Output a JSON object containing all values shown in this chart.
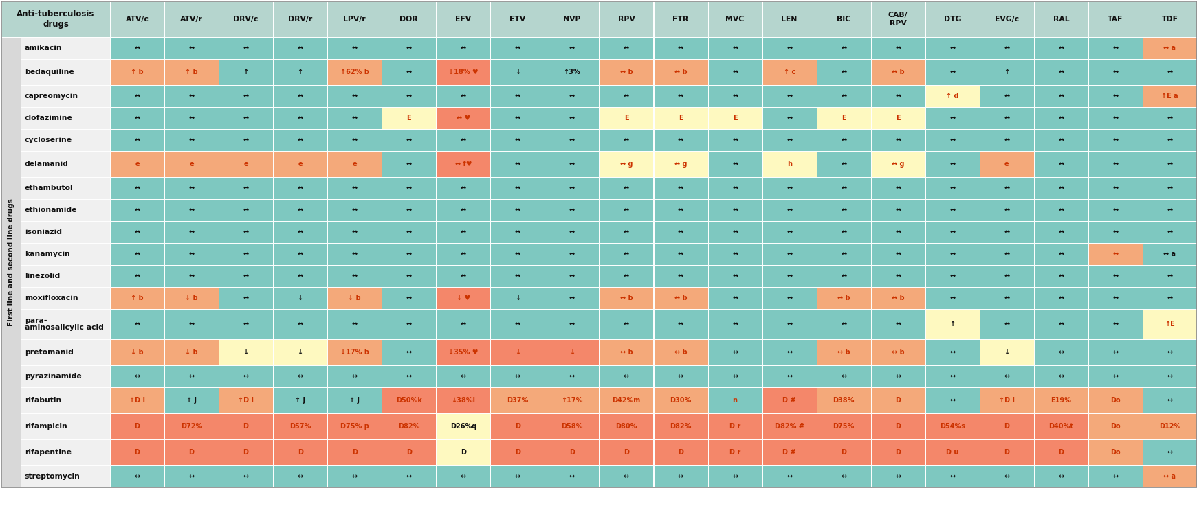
{
  "col_headers": [
    "ATV/c",
    "ATV/r",
    "DRV/c",
    "DRV/r",
    "LPV/r",
    "DOR",
    "EFV",
    "ETV",
    "NVP",
    "RPV",
    "FTR",
    "MVC",
    "LEN",
    "BIC",
    "CAB/\nRPV",
    "DTG",
    "EVG/c",
    "RAL",
    "TAF",
    "TDF"
  ],
  "row_labels": [
    "amikacin",
    "bedaquiline",
    "capreomycin",
    "clofazimine",
    "cycloserine",
    "delamanid",
    "ethambutol",
    "ethionamide",
    "isoniazid",
    "kanamycin",
    "linezolid",
    "moxifloxacin",
    "para-\naminosalicylic acid",
    "pretomanid",
    "pyrazinamide",
    "rifabutin",
    "rifampicin",
    "rifapentine",
    "streptomycin"
  ],
  "side_label": "First line and second line drugs",
  "cells": [
    [
      "↔",
      "↔",
      "↔",
      "↔",
      "↔",
      "↔",
      "↔",
      "↔",
      "↔",
      "↔",
      "↔",
      "↔",
      "↔",
      "↔",
      "↔",
      "↔",
      "↔",
      "↔",
      "↔",
      "↔ a"
    ],
    [
      "↑ b",
      "↑ b",
      "↑",
      "↑",
      "↑62% b",
      "↔",
      "↓18% ♥",
      "↓",
      "↑3%",
      "↔ b",
      "↔ b",
      "↔",
      "↑ c",
      "↔",
      "↔ b",
      "↔",
      "↑",
      "↔",
      "↔",
      "↔"
    ],
    [
      "↔",
      "↔",
      "↔",
      "↔",
      "↔",
      "↔",
      "↔",
      "↔",
      "↔",
      "↔",
      "↔",
      "↔",
      "↔",
      "↔",
      "↔",
      "↑ d",
      "↔",
      "↔",
      "↔",
      "↑E a"
    ],
    [
      "↔",
      "↔",
      "↔",
      "↔",
      "↔",
      "E",
      "↔ ♥",
      "↔",
      "↔",
      "E",
      "E",
      "E",
      "↔",
      "E",
      "E",
      "↔",
      "↔",
      "↔",
      "↔",
      "↔"
    ],
    [
      "↔",
      "↔",
      "↔",
      "↔",
      "↔",
      "↔",
      "↔",
      "↔",
      "↔",
      "↔",
      "↔",
      "↔",
      "↔",
      "↔",
      "↔",
      "↔",
      "↔",
      "↔",
      "↔",
      "↔"
    ],
    [
      "e",
      "e",
      "e",
      "e",
      "e",
      "↔",
      "↔ f♥",
      "↔",
      "↔",
      "↔ g",
      "↔ g",
      "↔",
      "h",
      "↔",
      "↔ g",
      "↔",
      "e",
      "↔",
      "↔",
      "↔"
    ],
    [
      "↔",
      "↔",
      "↔",
      "↔",
      "↔",
      "↔",
      "↔",
      "↔",
      "↔",
      "↔",
      "↔",
      "↔",
      "↔",
      "↔",
      "↔",
      "↔",
      "↔",
      "↔",
      "↔",
      "↔"
    ],
    [
      "↔",
      "↔",
      "↔",
      "↔",
      "↔",
      "↔",
      "↔",
      "↔",
      "↔",
      "↔",
      "↔",
      "↔",
      "↔",
      "↔",
      "↔",
      "↔",
      "↔",
      "↔",
      "↔",
      "↔"
    ],
    [
      "↔",
      "↔",
      "↔",
      "↔",
      "↔",
      "↔",
      "↔",
      "↔",
      "↔",
      "↔",
      "↔",
      "↔",
      "↔",
      "↔",
      "↔",
      "↔",
      "↔",
      "↔",
      "↔",
      "↔"
    ],
    [
      "↔",
      "↔",
      "↔",
      "↔",
      "↔",
      "↔",
      "↔",
      "↔",
      "↔",
      "↔",
      "↔",
      "↔",
      "↔",
      "↔",
      "↔",
      "↔",
      "↔",
      "↔",
      "↔",
      "↔ a"
    ],
    [
      "↔",
      "↔",
      "↔",
      "↔",
      "↔",
      "↔",
      "↔",
      "↔",
      "↔",
      "↔",
      "↔",
      "↔",
      "↔",
      "↔",
      "↔",
      "↔",
      "↔",
      "↔",
      "↔",
      "↔"
    ],
    [
      "↑ b",
      "↓ b",
      "↔",
      "↓",
      "↓ b",
      "↔",
      "↓ ♥",
      "↓",
      "↔",
      "↔ b",
      "↔ b",
      "↔",
      "↔",
      "↔ b",
      "↔ b",
      "↔",
      "↔",
      "↔",
      "↔",
      "↔"
    ],
    [
      "↔",
      "↔",
      "↔",
      "↔",
      "↔",
      "↔",
      "↔",
      "↔",
      "↔",
      "↔",
      "↔",
      "↔",
      "↔",
      "↔",
      "↔",
      "↑",
      "↔",
      "↔",
      "↔",
      "↑E"
    ],
    [
      "↓ b",
      "↓ b",
      "↓",
      "↓",
      "↓17% b",
      "↔",
      "↓35% ♥",
      "↓",
      "↓",
      "↔ b",
      "↔ b",
      "↔",
      "↔",
      "↔ b",
      "↔ b",
      "↔",
      "↓",
      "↔",
      "↔",
      "↔"
    ],
    [
      "↔",
      "↔",
      "↔",
      "↔",
      "↔",
      "↔",
      "↔",
      "↔",
      "↔",
      "↔",
      "↔",
      "↔",
      "↔",
      "↔",
      "↔",
      "↔",
      "↔",
      "↔",
      "↔",
      "↔"
    ],
    [
      "↑D i",
      "↑ j",
      "↑D i",
      "↑ j",
      "↑ j",
      "D50%k",
      "↓38%l",
      "D37%",
      "↑17%",
      "D42%m",
      "D30%",
      "n",
      "D #",
      "D38%",
      "D",
      "↔",
      "↑D i",
      "E19%",
      "Do",
      "↔"
    ],
    [
      "D",
      "D72%",
      "D",
      "D57%",
      "D75% p",
      "D82%",
      "D26%q",
      "D",
      "D58%",
      "D80%",
      "D82%",
      "D r",
      "D82% #",
      "D75%",
      "D",
      "D54%s",
      "D",
      "D40%t",
      "Do",
      "D12%"
    ],
    [
      "D",
      "D",
      "D",
      "D",
      "D",
      "D",
      "D",
      "D",
      "D",
      "D",
      "D",
      "D r",
      "D #",
      "D",
      "D",
      "D u",
      "D",
      "D",
      "Do",
      "↔"
    ],
    [
      "↔",
      "↔",
      "↔",
      "↔",
      "↔",
      "↔",
      "↔",
      "↔",
      "↔",
      "↔",
      "↔",
      "↔",
      "↔",
      "↔",
      "↔",
      "↔",
      "↔",
      "↔",
      "↔",
      "↔ a"
    ]
  ],
  "cell_colors": [
    [
      "#7ec8c0",
      "#7ec8c0",
      "#7ec8c0",
      "#7ec8c0",
      "#7ec8c0",
      "#7ec8c0",
      "#7ec8c0",
      "#7ec8c0",
      "#7ec8c0",
      "#7ec8c0",
      "#7ec8c0",
      "#7ec8c0",
      "#7ec8c0",
      "#7ec8c0",
      "#7ec8c0",
      "#7ec8c0",
      "#7ec8c0",
      "#7ec8c0",
      "#7ec8c0",
      "#f4a97a"
    ],
    [
      "#f4a97a",
      "#f4a97a",
      "#7ec8c0",
      "#7ec8c0",
      "#f4a97a",
      "#7ec8c0",
      "#f4876a",
      "#7ec8c0",
      "#7ec8c0",
      "#f4a97a",
      "#f4a97a",
      "#7ec8c0",
      "#f4a97a",
      "#7ec8c0",
      "#f4a97a",
      "#7ec8c0",
      "#7ec8c0",
      "#7ec8c0",
      "#7ec8c0",
      "#7ec8c0"
    ],
    [
      "#7ec8c0",
      "#7ec8c0",
      "#7ec8c0",
      "#7ec8c0",
      "#7ec8c0",
      "#7ec8c0",
      "#7ec8c0",
      "#7ec8c0",
      "#7ec8c0",
      "#7ec8c0",
      "#7ec8c0",
      "#7ec8c0",
      "#7ec8c0",
      "#7ec8c0",
      "#7ec8c0",
      "#fef9c0",
      "#7ec8c0",
      "#7ec8c0",
      "#7ec8c0",
      "#f4a97a"
    ],
    [
      "#7ec8c0",
      "#7ec8c0",
      "#7ec8c0",
      "#7ec8c0",
      "#7ec8c0",
      "#fef9c0",
      "#f4876a",
      "#7ec8c0",
      "#7ec8c0",
      "#fef9c0",
      "#fef9c0",
      "#fef9c0",
      "#7ec8c0",
      "#fef9c0",
      "#fef9c0",
      "#7ec8c0",
      "#7ec8c0",
      "#7ec8c0",
      "#7ec8c0",
      "#7ec8c0"
    ],
    [
      "#7ec8c0",
      "#7ec8c0",
      "#7ec8c0",
      "#7ec8c0",
      "#7ec8c0",
      "#7ec8c0",
      "#7ec8c0",
      "#7ec8c0",
      "#7ec8c0",
      "#7ec8c0",
      "#7ec8c0",
      "#7ec8c0",
      "#7ec8c0",
      "#7ec8c0",
      "#7ec8c0",
      "#7ec8c0",
      "#7ec8c0",
      "#7ec8c0",
      "#7ec8c0",
      "#7ec8c0"
    ],
    [
      "#f4a97a",
      "#f4a97a",
      "#f4a97a",
      "#f4a97a",
      "#f4a97a",
      "#7ec8c0",
      "#f4876a",
      "#7ec8c0",
      "#7ec8c0",
      "#fef9c0",
      "#fef9c0",
      "#7ec8c0",
      "#fef9c0",
      "#7ec8c0",
      "#fef9c0",
      "#7ec8c0",
      "#f4a97a",
      "#7ec8c0",
      "#7ec8c0",
      "#7ec8c0"
    ],
    [
      "#7ec8c0",
      "#7ec8c0",
      "#7ec8c0",
      "#7ec8c0",
      "#7ec8c0",
      "#7ec8c0",
      "#7ec8c0",
      "#7ec8c0",
      "#7ec8c0",
      "#7ec8c0",
      "#7ec8c0",
      "#7ec8c0",
      "#7ec8c0",
      "#7ec8c0",
      "#7ec8c0",
      "#7ec8c0",
      "#7ec8c0",
      "#7ec8c0",
      "#7ec8c0",
      "#7ec8c0"
    ],
    [
      "#7ec8c0",
      "#7ec8c0",
      "#7ec8c0",
      "#7ec8c0",
      "#7ec8c0",
      "#7ec8c0",
      "#7ec8c0",
      "#7ec8c0",
      "#7ec8c0",
      "#7ec8c0",
      "#7ec8c0",
      "#7ec8c0",
      "#7ec8c0",
      "#7ec8c0",
      "#7ec8c0",
      "#7ec8c0",
      "#7ec8c0",
      "#7ec8c0",
      "#7ec8c0",
      "#7ec8c0"
    ],
    [
      "#7ec8c0",
      "#7ec8c0",
      "#7ec8c0",
      "#7ec8c0",
      "#7ec8c0",
      "#7ec8c0",
      "#7ec8c0",
      "#7ec8c0",
      "#7ec8c0",
      "#7ec8c0",
      "#7ec8c0",
      "#7ec8c0",
      "#7ec8c0",
      "#7ec8c0",
      "#7ec8c0",
      "#7ec8c0",
      "#7ec8c0",
      "#7ec8c0",
      "#7ec8c0",
      "#7ec8c0"
    ],
    [
      "#7ec8c0",
      "#7ec8c0",
      "#7ec8c0",
      "#7ec8c0",
      "#7ec8c0",
      "#7ec8c0",
      "#7ec8c0",
      "#7ec8c0",
      "#7ec8c0",
      "#7ec8c0",
      "#7ec8c0",
      "#7ec8c0",
      "#7ec8c0",
      "#7ec8c0",
      "#7ec8c0",
      "#7ec8c0",
      "#7ec8c0",
      "#7ec8c0",
      "#f4a97a",
      "#7ec8c0"
    ],
    [
      "#7ec8c0",
      "#7ec8c0",
      "#7ec8c0",
      "#7ec8c0",
      "#7ec8c0",
      "#7ec8c0",
      "#7ec8c0",
      "#7ec8c0",
      "#7ec8c0",
      "#7ec8c0",
      "#7ec8c0",
      "#7ec8c0",
      "#7ec8c0",
      "#7ec8c0",
      "#7ec8c0",
      "#7ec8c0",
      "#7ec8c0",
      "#7ec8c0",
      "#7ec8c0",
      "#7ec8c0"
    ],
    [
      "#f4a97a",
      "#f4a97a",
      "#7ec8c0",
      "#7ec8c0",
      "#f4a97a",
      "#7ec8c0",
      "#f4876a",
      "#7ec8c0",
      "#7ec8c0",
      "#f4a97a",
      "#f4a97a",
      "#7ec8c0",
      "#7ec8c0",
      "#f4a97a",
      "#f4a97a",
      "#7ec8c0",
      "#7ec8c0",
      "#7ec8c0",
      "#7ec8c0",
      "#7ec8c0"
    ],
    [
      "#7ec8c0",
      "#7ec8c0",
      "#7ec8c0",
      "#7ec8c0",
      "#7ec8c0",
      "#7ec8c0",
      "#7ec8c0",
      "#7ec8c0",
      "#7ec8c0",
      "#7ec8c0",
      "#7ec8c0",
      "#7ec8c0",
      "#7ec8c0",
      "#7ec8c0",
      "#7ec8c0",
      "#fef9c0",
      "#7ec8c0",
      "#7ec8c0",
      "#7ec8c0",
      "#fef9c0"
    ],
    [
      "#f4a97a",
      "#f4a97a",
      "#fef9c0",
      "#fef9c0",
      "#f4a97a",
      "#7ec8c0",
      "#f4876a",
      "#f4876a",
      "#f4876a",
      "#f4a97a",
      "#f4a97a",
      "#7ec8c0",
      "#7ec8c0",
      "#f4a97a",
      "#f4a97a",
      "#7ec8c0",
      "#fef9c0",
      "#7ec8c0",
      "#7ec8c0",
      "#7ec8c0"
    ],
    [
      "#7ec8c0",
      "#7ec8c0",
      "#7ec8c0",
      "#7ec8c0",
      "#7ec8c0",
      "#7ec8c0",
      "#7ec8c0",
      "#7ec8c0",
      "#7ec8c0",
      "#7ec8c0",
      "#7ec8c0",
      "#7ec8c0",
      "#7ec8c0",
      "#7ec8c0",
      "#7ec8c0",
      "#7ec8c0",
      "#7ec8c0",
      "#7ec8c0",
      "#7ec8c0",
      "#7ec8c0"
    ],
    [
      "#f4a97a",
      "#7ec8c0",
      "#f4a97a",
      "#7ec8c0",
      "#7ec8c0",
      "#f4876a",
      "#f4876a",
      "#f4a97a",
      "#f4a97a",
      "#f4a97a",
      "#f4a97a",
      "#7ec8c0",
      "#f4876a",
      "#f4a97a",
      "#f4a97a",
      "#7ec8c0",
      "#f4a97a",
      "#f4a97a",
      "#f4a97a",
      "#7ec8c0"
    ],
    [
      "#f4876a",
      "#f4876a",
      "#f4876a",
      "#f4876a",
      "#f4876a",
      "#f4876a",
      "#fef9c0",
      "#f4876a",
      "#f4876a",
      "#f4876a",
      "#f4876a",
      "#f4876a",
      "#f4876a",
      "#f4876a",
      "#f4876a",
      "#f4876a",
      "#f4876a",
      "#f4876a",
      "#f4a97a",
      "#f4a97a"
    ],
    [
      "#f4876a",
      "#f4876a",
      "#f4876a",
      "#f4876a",
      "#f4876a",
      "#f4876a",
      "#fef9c0",
      "#f4876a",
      "#f4876a",
      "#f4876a",
      "#f4876a",
      "#f4876a",
      "#f4876a",
      "#f4876a",
      "#f4876a",
      "#f4876a",
      "#f4876a",
      "#f4876a",
      "#f4a97a",
      "#7ec8c0"
    ],
    [
      "#7ec8c0",
      "#7ec8c0",
      "#7ec8c0",
      "#7ec8c0",
      "#7ec8c0",
      "#7ec8c0",
      "#7ec8c0",
      "#7ec8c0",
      "#7ec8c0",
      "#7ec8c0",
      "#7ec8c0",
      "#7ec8c0",
      "#7ec8c0",
      "#7ec8c0",
      "#7ec8c0",
      "#7ec8c0",
      "#7ec8c0",
      "#7ec8c0",
      "#7ec8c0",
      "#f4a97a"
    ]
  ],
  "orange_text_cells": [
    [
      false,
      false,
      false,
      false,
      false,
      false,
      false,
      false,
      false,
      false,
      false,
      false,
      false,
      false,
      false,
      false,
      false,
      false,
      false,
      true
    ],
    [
      true,
      true,
      false,
      false,
      true,
      false,
      true,
      false,
      false,
      true,
      true,
      false,
      true,
      false,
      true,
      false,
      false,
      false,
      false,
      false
    ],
    [
      false,
      false,
      false,
      false,
      false,
      false,
      false,
      false,
      false,
      false,
      false,
      false,
      false,
      false,
      false,
      true,
      false,
      false,
      false,
      true
    ],
    [
      false,
      false,
      false,
      false,
      false,
      true,
      true,
      false,
      false,
      true,
      true,
      true,
      false,
      true,
      true,
      false,
      false,
      false,
      false,
      false
    ],
    [
      false,
      false,
      false,
      false,
      false,
      false,
      false,
      false,
      false,
      false,
      false,
      false,
      false,
      false,
      false,
      false,
      false,
      false,
      false,
      false
    ],
    [
      true,
      true,
      true,
      true,
      true,
      false,
      true,
      false,
      false,
      true,
      true,
      false,
      true,
      false,
      true,
      false,
      true,
      false,
      false,
      false
    ],
    [
      false,
      false,
      false,
      false,
      false,
      false,
      false,
      false,
      false,
      false,
      false,
      false,
      false,
      false,
      false,
      false,
      false,
      false,
      false,
      false
    ],
    [
      false,
      false,
      false,
      false,
      false,
      false,
      false,
      false,
      false,
      false,
      false,
      false,
      false,
      false,
      false,
      false,
      false,
      false,
      false,
      false
    ],
    [
      false,
      false,
      false,
      false,
      false,
      false,
      false,
      false,
      false,
      false,
      false,
      false,
      false,
      false,
      false,
      false,
      false,
      false,
      false,
      false
    ],
    [
      false,
      false,
      false,
      false,
      false,
      false,
      false,
      false,
      false,
      false,
      false,
      false,
      false,
      false,
      false,
      false,
      false,
      false,
      true,
      false
    ],
    [
      false,
      false,
      false,
      false,
      false,
      false,
      false,
      false,
      false,
      false,
      false,
      false,
      false,
      false,
      false,
      false,
      false,
      false,
      false,
      false
    ],
    [
      true,
      true,
      false,
      false,
      true,
      false,
      true,
      false,
      false,
      true,
      true,
      false,
      false,
      true,
      true,
      false,
      false,
      false,
      false,
      false
    ],
    [
      false,
      false,
      false,
      false,
      false,
      false,
      false,
      false,
      false,
      false,
      false,
      false,
      false,
      false,
      false,
      false,
      false,
      false,
      false,
      true
    ],
    [
      true,
      true,
      false,
      false,
      true,
      false,
      true,
      true,
      true,
      true,
      true,
      false,
      false,
      true,
      true,
      false,
      false,
      false,
      false,
      false
    ],
    [
      false,
      false,
      false,
      false,
      false,
      false,
      false,
      false,
      false,
      false,
      false,
      false,
      false,
      false,
      false,
      false,
      false,
      false,
      false,
      false
    ],
    [
      true,
      false,
      true,
      false,
      false,
      true,
      true,
      true,
      true,
      true,
      true,
      true,
      true,
      true,
      true,
      false,
      true,
      true,
      true,
      false
    ],
    [
      true,
      true,
      true,
      true,
      true,
      true,
      false,
      true,
      true,
      true,
      true,
      true,
      true,
      true,
      true,
      true,
      true,
      true,
      true,
      true
    ],
    [
      true,
      true,
      true,
      true,
      true,
      true,
      false,
      true,
      true,
      true,
      true,
      true,
      true,
      true,
      true,
      true,
      true,
      true,
      true,
      false
    ],
    [
      false,
      false,
      false,
      false,
      false,
      false,
      false,
      false,
      false,
      false,
      false,
      false,
      false,
      false,
      false,
      false,
      false,
      false,
      false,
      true
    ]
  ]
}
